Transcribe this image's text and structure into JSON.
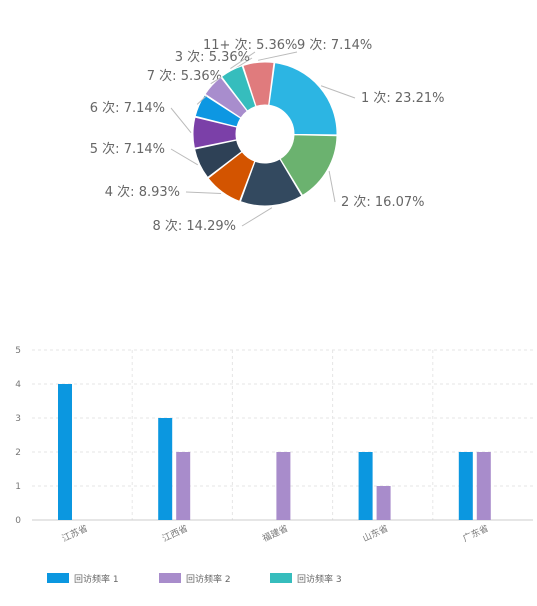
{
  "colors": {
    "label_text": "#666666",
    "leader_line": "#bbbbbb",
    "grid": "#e6e6e6",
    "axis": "#cccccc",
    "axis_text": "#777777"
  },
  "chart_data": [
    {
      "type": "pie",
      "donut": true,
      "slices": [
        {
          "label": "1 次",
          "value": 23.21,
          "display": "1 次: 23.21%",
          "color": "#2cb5e3"
        },
        {
          "label": "2 次",
          "value": 16.07,
          "display": "2 次: 16.07%",
          "color": "#6bb26f"
        },
        {
          "label": "8 次",
          "value": 14.29,
          "display": "8 次: 14.29%",
          "color": "#33495f"
        },
        {
          "label": "4 次",
          "value": 8.93,
          "display": "4 次: 8.93%",
          "color": "#d35400"
        },
        {
          "label": "5 次",
          "value": 7.14,
          "display": "5 次: 7.14%",
          "color": "#2e4156"
        },
        {
          "label": "6 次",
          "value": 7.14,
          "display": "6 次: 7.14%",
          "color": "#7b40a8"
        },
        {
          "label": "7 次",
          "value": 5.36,
          "display": "7 次: 5.36%",
          "color": "#0d97e2"
        },
        {
          "label": "3 次",
          "value": 5.36,
          "display": "3 次: 5.36%",
          "color": "#a88dcd"
        },
        {
          "label": "11+ 次",
          "value": 5.36,
          "display": "11+ 次: 5.36%",
          "color": "#36bdbd"
        },
        {
          "label": "9 次",
          "value": 7.14,
          "display": "9 次: 7.14%",
          "color": "#e07b7d"
        }
      ]
    },
    {
      "type": "bar",
      "categories": [
        "江苏省",
        "江西省",
        "福建省",
        "山东省",
        "广东省"
      ],
      "series": [
        {
          "name": "回访频率 1",
          "values": [
            4,
            3,
            0,
            2,
            2
          ],
          "color": "#0b97e0"
        },
        {
          "name": "回访频率 2",
          "values": [
            0,
            2,
            2,
            1,
            2
          ],
          "color": "#a88ccb"
        },
        {
          "name": "回访频率 3",
          "values": [
            0,
            0,
            0,
            0,
            0
          ],
          "color": "#36bdbd"
        }
      ],
      "ylim": [
        0,
        5
      ],
      "yticks": [
        0,
        1,
        2,
        3,
        4,
        5
      ],
      "grid": true,
      "legend_position": "bottom-left"
    }
  ]
}
